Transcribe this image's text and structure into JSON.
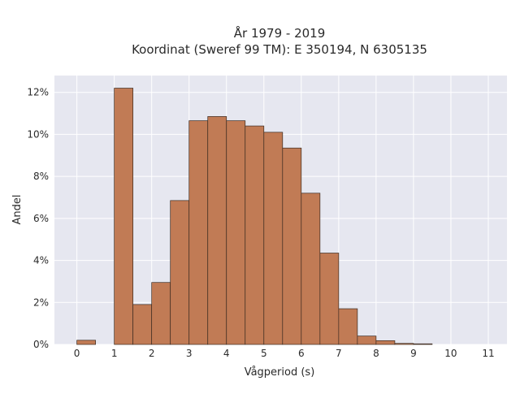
{
  "chart_data": {
    "type": "bar",
    "title": "År 1979 - 2019",
    "subtitle": "Koordinat (Sweref 99 TM): E 350194, N 6305135",
    "xlabel": "Vågperiod (s)",
    "ylabel": "Andel",
    "xlim": [
      -0.6,
      11.5
    ],
    "ylim": [
      0,
      12.8
    ],
    "x_ticks": [
      0,
      1,
      2,
      3,
      4,
      5,
      6,
      7,
      8,
      9,
      10,
      11
    ],
    "x_tick_labels": [
      "0",
      "1",
      "2",
      "3",
      "4",
      "5",
      "6",
      "7",
      "8",
      "9",
      "10",
      "11"
    ],
    "y_ticks": [
      0,
      2,
      4,
      6,
      8,
      10,
      12
    ],
    "y_tick_labels": [
      "0%",
      "2%",
      "4%",
      "6%",
      "8%",
      "10%",
      "12%"
    ],
    "bin_width": 0.5,
    "bins": [
      {
        "start": 0.0,
        "value": 0.2
      },
      {
        "start": 1.0,
        "value": 12.2
      },
      {
        "start": 1.5,
        "value": 1.9
      },
      {
        "start": 2.0,
        "value": 2.95
      },
      {
        "start": 2.5,
        "value": 6.85
      },
      {
        "start": 3.0,
        "value": 10.65
      },
      {
        "start": 3.5,
        "value": 10.85
      },
      {
        "start": 4.0,
        "value": 10.65
      },
      {
        "start": 4.5,
        "value": 10.4
      },
      {
        "start": 5.0,
        "value": 10.1
      },
      {
        "start": 5.5,
        "value": 9.35
      },
      {
        "start": 6.0,
        "value": 7.2
      },
      {
        "start": 6.5,
        "value": 4.35
      },
      {
        "start": 7.0,
        "value": 1.7
      },
      {
        "start": 7.5,
        "value": 0.4
      },
      {
        "start": 8.0,
        "value": 0.18
      },
      {
        "start": 8.5,
        "value": 0.05
      },
      {
        "start": 9.0,
        "value": 0.03
      }
    ],
    "bar_color": "#c17b55",
    "bar_edge_color": "#3a2a20",
    "plot_background": "#e6e7f0",
    "grid": true,
    "grid_color": "#ffffff"
  }
}
